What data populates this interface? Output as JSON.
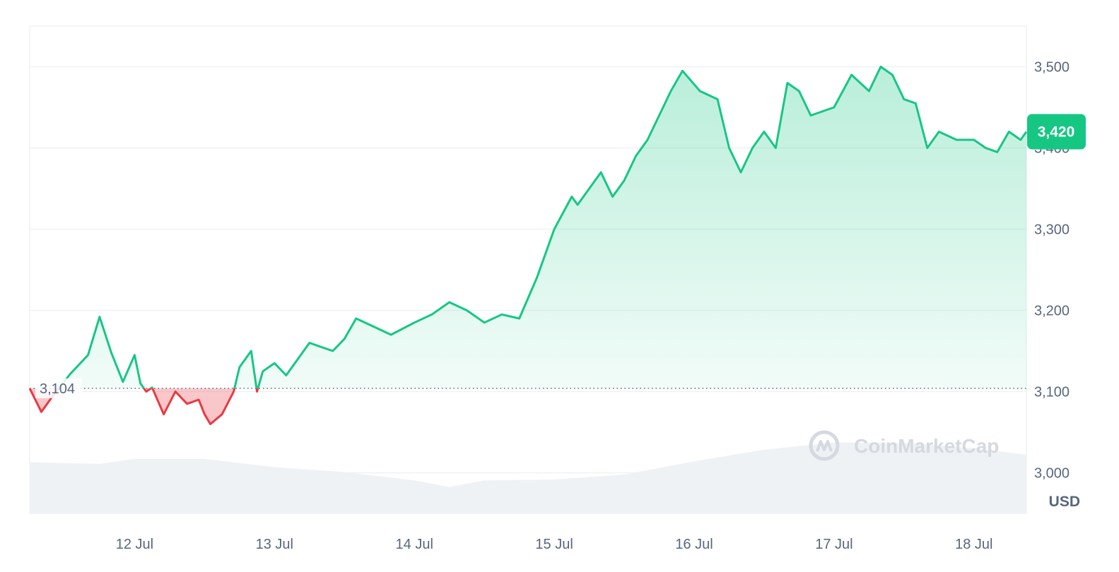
{
  "chart_data": {
    "type": "area",
    "currency_label": "USD",
    "watermark": "CoinMarketCap",
    "x_start": "11 Jul 06:00",
    "x_end": "18 Jul 09:00",
    "x_tick_labels": [
      "12 Jul",
      "13 Jul",
      "14 Jul",
      "15 Jul",
      "16 Jul",
      "17 Jul",
      "18 Jul"
    ],
    "ylim": [
      2950,
      3550
    ],
    "y_ticks": [
      3000,
      3100,
      3200,
      3300,
      3400,
      3500
    ],
    "y_tick_labels": [
      "3,000",
      "3,100",
      "3,200",
      "3,300",
      "3,400",
      "3,500"
    ],
    "baseline_value": 3104,
    "baseline_label": "3,104",
    "current_price": 3420,
    "current_price_label": "3,420",
    "grid": true,
    "up_color": "#16c784",
    "down_color": "#ea3943",
    "series": [
      {
        "x": [
          "11 Jul 06:00",
          "11 Jul 08:00",
          "11 Jul 10:00",
          "11 Jul 13:00",
          "11 Jul 16:00",
          "11 Jul 18:00",
          "11 Jul 20:00",
          "11 Jul 22:00",
          "12 Jul 00:00",
          "12 Jul 01:00",
          "12 Jul 02:00",
          "12 Jul 03:00",
          "12 Jul 05:00",
          "12 Jul 07:00",
          "12 Jul 09:00",
          "12 Jul 11:00",
          "12 Jul 12:00",
          "12 Jul 13:00",
          "12 Jul 15:00",
          "12 Jul 17:00",
          "12 Jul 18:00",
          "12 Jul 20:00",
          "12 Jul 21:00",
          "12 Jul 22:00",
          "13 Jul 00:00",
          "13 Jul 02:00",
          "13 Jul 04:00",
          "13 Jul 06:00",
          "13 Jul 08:00",
          "13 Jul 10:00",
          "13 Jul 12:00",
          "13 Jul 14:00",
          "13 Jul 17:00",
          "13 Jul 20:00",
          "14 Jul 00:00",
          "14 Jul 03:00",
          "14 Jul 06:00",
          "14 Jul 09:00",
          "14 Jul 12:00",
          "14 Jul 15:00",
          "14 Jul 18:00",
          "14 Jul 21:00",
          "15 Jul 00:00",
          "15 Jul 03:00",
          "15 Jul 04:00",
          "15 Jul 06:00",
          "15 Jul 08:00",
          "15 Jul 10:00",
          "15 Jul 12:00",
          "15 Jul 14:00",
          "15 Jul 16:00",
          "15 Jul 18:00",
          "15 Jul 20:00",
          "15 Jul 22:00",
          "16 Jul 01:00",
          "16 Jul 04:00",
          "16 Jul 06:00",
          "16 Jul 08:00",
          "16 Jul 10:00",
          "16 Jul 12:00",
          "16 Jul 14:00",
          "16 Jul 16:00",
          "16 Jul 18:00",
          "16 Jul 20:00",
          "17 Jul 00:00",
          "17 Jul 03:00",
          "17 Jul 06:00",
          "17 Jul 08:00",
          "17 Jul 10:00",
          "17 Jul 12:00",
          "17 Jul 14:00",
          "17 Jul 16:00",
          "17 Jul 18:00",
          "17 Jul 21:00",
          "18 Jul 00:00",
          "18 Jul 02:00",
          "18 Jul 04:00",
          "18 Jul 06:00",
          "18 Jul 08:00",
          "18 Jul 09:00"
        ],
        "y": [
          3104,
          3075,
          3095,
          3122,
          3145,
          3192,
          3148,
          3112,
          3145,
          3110,
          3100,
          3105,
          3072,
          3100,
          3085,
          3090,
          3072,
          3060,
          3072,
          3100,
          3130,
          3150,
          3100,
          3125,
          3135,
          3120,
          3140,
          3160,
          3155,
          3150,
          3165,
          3190,
          3180,
          3170,
          3185,
          3195,
          3210,
          3200,
          3185,
          3195,
          3190,
          3240,
          3300,
          3340,
          3330,
          3350,
          3370,
          3340,
          3360,
          3390,
          3410,
          3440,
          3470,
          3495,
          3470,
          3460,
          3400,
          3370,
          3400,
          3420,
          3400,
          3480,
          3470,
          3440,
          3450,
          3490,
          3470,
          3500,
          3490,
          3460,
          3455,
          3400,
          3420,
          3410,
          3410,
          3400,
          3395,
          3420,
          3410,
          3420
        ]
      }
    ],
    "volume": {
      "x": [
        "11 Jul 06:00",
        "11 Jul 18:00",
        "12 Jul 00:00",
        "12 Jul 12:00",
        "13 Jul 00:00",
        "13 Jul 12:00",
        "14 Jul 00:00",
        "14 Jul 06:00",
        "14 Jul 12:00",
        "15 Jul 00:00",
        "15 Jul 12:00",
        "16 Jul 00:00",
        "16 Jul 12:00",
        "17 Jul 00:00",
        "17 Jul 12:00",
        "18 Jul 00:00",
        "18 Jul 09:00"
      ],
      "values": [
        0.62,
        0.6,
        0.66,
        0.66,
        0.56,
        0.5,
        0.4,
        0.32,
        0.4,
        0.41,
        0.47,
        0.63,
        0.77,
        0.86,
        0.85,
        0.79,
        0.71
      ]
    }
  }
}
